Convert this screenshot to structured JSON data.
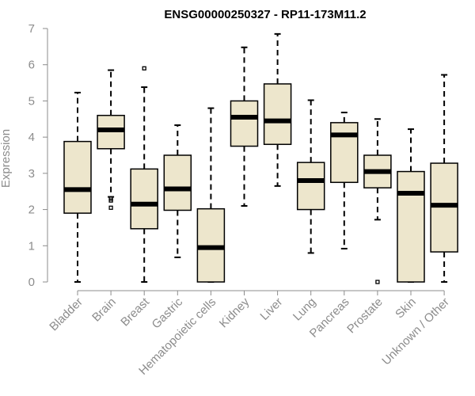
{
  "colors": {
    "box_fill": "#ede6cc",
    "stroke": "#000000",
    "axis_text": "#8c8c8c",
    "axis_line": "#8c8c8c"
  },
  "chart_data": {
    "type": "boxplot",
    "title": "ENSG00000250327 - RP11-173M11.2",
    "xlabel": "",
    "ylabel": "Expression",
    "ylim": [
      0,
      7
    ],
    "yticks": [
      0,
      1,
      2,
      3,
      4,
      5,
      6,
      7
    ],
    "categories": [
      "Bladder",
      "Brain",
      "Breast",
      "Gastric",
      "Hematopoietic cells",
      "Kidney",
      "Liver",
      "Lung",
      "Pancreas",
      "Prostate",
      "Skin",
      "Unknown / Other"
    ],
    "boxes": [
      {
        "min": 0.0,
        "q1": 1.9,
        "median": 2.55,
        "q3": 3.88,
        "max": 5.23,
        "outliers": []
      },
      {
        "min": 2.35,
        "q1": 3.68,
        "median": 4.2,
        "q3": 4.6,
        "max": 5.85,
        "outliers": [
          2.05,
          2.25,
          2.3
        ]
      },
      {
        "min": 0.0,
        "q1": 1.47,
        "median": 2.15,
        "q3": 3.12,
        "max": 5.38,
        "outliers": [
          5.9
        ]
      },
      {
        "min": 0.68,
        "q1": 1.98,
        "median": 2.57,
        "q3": 3.5,
        "max": 4.33,
        "outliers": []
      },
      {
        "min": 0.0,
        "q1": 0.0,
        "median": 0.95,
        "q3": 2.02,
        "max": 4.8,
        "outliers": []
      },
      {
        "min": 2.1,
        "q1": 3.75,
        "median": 4.55,
        "q3": 5.0,
        "max": 6.48,
        "outliers": []
      },
      {
        "min": 2.65,
        "q1": 3.8,
        "median": 4.45,
        "q3": 5.47,
        "max": 6.85,
        "outliers": []
      },
      {
        "min": 0.8,
        "q1": 2.0,
        "median": 2.8,
        "q3": 3.3,
        "max": 5.02,
        "outliers": []
      },
      {
        "min": 0.92,
        "q1": 2.75,
        "median": 4.06,
        "q3": 4.4,
        "max": 4.68,
        "outliers": []
      },
      {
        "min": 1.72,
        "q1": 2.6,
        "median": 3.05,
        "q3": 3.5,
        "max": 4.5,
        "outliers": [
          0.0
        ]
      },
      {
        "min": 0.0,
        "q1": 0.0,
        "median": 2.45,
        "q3": 3.05,
        "max": 4.22,
        "outliers": []
      },
      {
        "min": 0.0,
        "q1": 0.83,
        "median": 2.12,
        "q3": 3.28,
        "max": 5.72,
        "outliers": []
      }
    ]
  }
}
